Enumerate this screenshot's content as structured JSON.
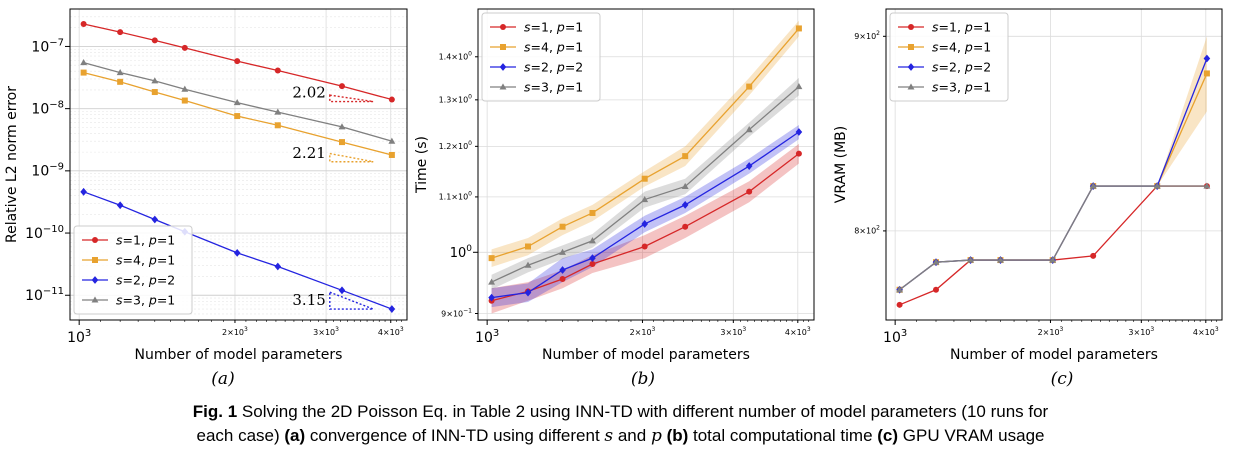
{
  "chart_data": [
    {
      "type": "line",
      "panel": "(a)",
      "xlabel": "Number of model parameters",
      "ylabel": "Relative L2 norm error",
      "xscale": "log",
      "yscale": "log",
      "xlim": [
        960,
        4300
      ],
      "ylim": [
        4e-12,
        4e-07
      ],
      "x_ticks_major": [
        {
          "v": 1000,
          "label": "10^3"
        }
      ],
      "x_ticks_minor": [
        {
          "v": 2000,
          "label": "2×10^3"
        },
        {
          "v": 3000,
          "label": "3×10^3"
        },
        {
          "v": 4000,
          "label": "4×10^3"
        }
      ],
      "y_ticks": [
        {
          "v": 1e-11,
          "label": "10^-11"
        },
        {
          "v": 1e-10,
          "label": "10^-10"
        },
        {
          "v": 1e-09,
          "label": "10^-9"
        },
        {
          "v": 1e-08,
          "label": "10^-8"
        },
        {
          "v": 1e-07,
          "label": "10^-7"
        }
      ],
      "grid": true,
      "legend": "bottom-left",
      "x": [
        1020,
        1200,
        1400,
        1600,
        2020,
        2420,
        3220,
        4020
      ],
      "series": [
        {
          "name": "s=1, p=1",
          "color": "#d62728",
          "marker": "circle",
          "values": [
            2.3e-07,
            1.7e-07,
            1.25e-07,
            9.5e-08,
            5.8e-08,
            4.1e-08,
            2.3e-08,
            1.4e-08
          ]
        },
        {
          "name": "s=4, p=1",
          "color": "#e8a22f",
          "marker": "square",
          "values": [
            3.8e-08,
            2.7e-08,
            1.85e-08,
            1.35e-08,
            7.6e-09,
            5.4e-09,
            2.9e-09,
            1.8e-09
          ]
        },
        {
          "name": "s=2, p=2",
          "color": "#2424e0",
          "marker": "diamond",
          "values": [
            4.6e-10,
            2.8e-10,
            1.65e-10,
            1.05e-10,
            4.8e-11,
            2.9e-11,
            1.2e-11,
            6e-12
          ]
        },
        {
          "name": "s=3, p=1",
          "color": "#808080",
          "marker": "triangle",
          "values": [
            5.5e-08,
            3.8e-08,
            2.8e-08,
            2.05e-08,
            1.25e-08,
            8.8e-09,
            5.1e-09,
            3e-09
          ]
        }
      ],
      "annotations": [
        {
          "text": "2.02",
          "color": "#d62728",
          "x": 3050,
          "y": 1.3e-08,
          "x2": 3700,
          "y2": 1.65e-08
        },
        {
          "text": "2.21",
          "color": "#e8a22f",
          "x": 3050,
          "y": 1.4e-09,
          "x2": 3700,
          "y2": 1.9e-09
        },
        {
          "text": "3.15",
          "color": "#2424e0",
          "x": 3050,
          "y": 6e-12,
          "x2": 3700,
          "y2": 1.12e-11
        }
      ]
    },
    {
      "type": "line",
      "panel": "(b)",
      "xlabel": "Number of model parameters",
      "ylabel": "Time (s)",
      "xscale": "log",
      "yscale": "log",
      "xlim": [
        960,
        4300
      ],
      "ylim": [
        0.89,
        1.52
      ],
      "x_ticks_major": [
        {
          "v": 1000,
          "label": "10^3"
        }
      ],
      "x_ticks_minor": [
        {
          "v": 2000,
          "label": "2×10^3"
        },
        {
          "v": 3000,
          "label": "3×10^3"
        },
        {
          "v": 4000,
          "label": "4×10^3"
        }
      ],
      "y_ticks": [
        {
          "v": 0.9,
          "label": "9×10^-1",
          "minor": true
        },
        {
          "v": 1.0,
          "label": "10^0",
          "minor": false
        },
        {
          "v": 1.1,
          "label": "1.1×10^0",
          "minor": true
        },
        {
          "v": 1.2,
          "label": "1.2×10^0",
          "minor": true
        },
        {
          "v": 1.3,
          "label": "1.3×10^0",
          "minor": true
        },
        {
          "v": 1.4,
          "label": "1.4×10^0",
          "minor": true
        }
      ],
      "grid": true,
      "legend": "top-left",
      "x": [
        1020,
        1200,
        1400,
        1600,
        2020,
        2420,
        3220,
        4020
      ],
      "series": [
        {
          "name": "s=1, p=1",
          "color": "#d62728",
          "marker": "circle",
          "values": [
            0.92,
            0.935,
            0.955,
            0.98,
            1.01,
            1.045,
            1.11,
            1.185
          ],
          "band": [
            0.02,
            0.015,
            0.015,
            0.015,
            0.02,
            0.02,
            0.02,
            0.02
          ]
        },
        {
          "name": "s=4, p=1",
          "color": "#e8a22f",
          "marker": "square",
          "values": [
            0.99,
            1.01,
            1.045,
            1.07,
            1.135,
            1.18,
            1.33,
            1.47
          ],
          "band": [
            0.015,
            0.015,
            0.015,
            0.015,
            0.015,
            0.02,
            0.02,
            0.02
          ]
        },
        {
          "name": "s=2, p=2",
          "color": "#2424e0",
          "marker": "diamond",
          "values": [
            0.925,
            0.933,
            0.97,
            0.99,
            1.05,
            1.085,
            1.16,
            1.23
          ],
          "band": [
            0.015,
            0.015,
            0.02,
            0.015,
            0.015,
            0.015,
            0.015,
            0.015
          ]
        },
        {
          "name": "s=3, p=1",
          "color": "#808080",
          "marker": "triangle",
          "values": [
            0.95,
            0.978,
            1.0,
            1.02,
            1.095,
            1.12,
            1.235,
            1.33
          ],
          "band": [
            0.012,
            0.012,
            0.012,
            0.012,
            0.015,
            0.015,
            0.015,
            0.02
          ]
        }
      ]
    },
    {
      "type": "line",
      "panel": "(c)",
      "xlabel": "Number of model parameters",
      "ylabel": "VRAM (MB)",
      "xscale": "log",
      "yscale": "log",
      "xlim": [
        960,
        4300
      ],
      "ylim": [
        758,
        915
      ],
      "x_ticks_major": [
        {
          "v": 1000,
          "label": "10^3"
        }
      ],
      "x_ticks_minor": [
        {
          "v": 2000,
          "label": "2×10^3"
        },
        {
          "v": 3000,
          "label": "3×10^3"
        },
        {
          "v": 4000,
          "label": "4×10^3"
        }
      ],
      "y_ticks": [
        {
          "v": 800,
          "label": "8×10^2"
        },
        {
          "v": 900,
          "label": "9×10^2"
        }
      ],
      "grid": true,
      "legend": "top-left",
      "x": [
        1020,
        1200,
        1400,
        1600,
        2020,
        2420,
        3220,
        4020
      ],
      "series": [
        {
          "name": "s=1, p=1",
          "color": "#d62728",
          "marker": "circle",
          "values": [
            765,
            772,
            786,
            786,
            786,
            788,
            822,
            822
          ]
        },
        {
          "name": "s=4, p=1",
          "color": "#e8a22f",
          "marker": "square",
          "values": [
            772,
            785,
            786,
            786,
            786,
            822,
            822,
            880
          ],
          "band": [
            0,
            0,
            0,
            0,
            0,
            0,
            0,
            20
          ]
        },
        {
          "name": "s=2, p=2",
          "color": "#2424e0",
          "marker": "diamond",
          "values": [
            772,
            785,
            786,
            786,
            786,
            822,
            822,
            888
          ]
        },
        {
          "name": "s=3, p=1",
          "color": "#808080",
          "marker": "triangle",
          "values": [
            772,
            785,
            786,
            786,
            786,
            822,
            822,
            822
          ]
        }
      ]
    }
  ],
  "panel_labels": [
    "(a)",
    "(b)",
    "(c)"
  ],
  "caption": {
    "fig": "Fig. 1",
    "line1_text": " Solving the 2D Poisson Eq. in Table 2 using INN-TD with different number of model parameters (10 runs for",
    "line2_a": "each case) ",
    "line2_b": "(a)",
    "line2_c": " convergence of INN-TD using different ",
    "line2_s": "s",
    "line2_d": " and ",
    "line2_p": "p",
    "line2_e": " ",
    "line2_f": "(b)",
    "line2_g": " total computational time ",
    "line2_h": "(c)",
    "line2_i": " GPU VRAM usage"
  }
}
